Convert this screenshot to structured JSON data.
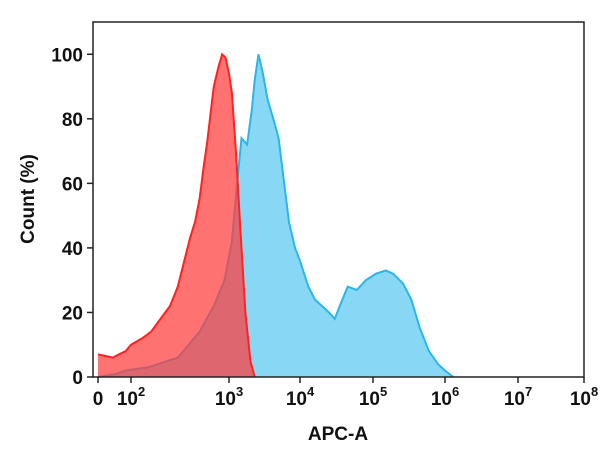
{
  "chart_data": {
    "type": "area",
    "title": "",
    "xlabel": "APC-A",
    "ylabel": "Count (%)",
    "x_scale": "biexponential",
    "ylim": [
      0,
      110
    ],
    "grid": false,
    "x_ticks": [
      {
        "value": 0,
        "base": "0",
        "exp": ""
      },
      {
        "value": 100,
        "base": "10",
        "exp": "2"
      },
      {
        "value": 1000,
        "base": "10",
        "exp": "3"
      },
      {
        "value": 10000,
        "base": "10",
        "exp": "4"
      },
      {
        "value": 100000,
        "base": "10",
        "exp": "5"
      },
      {
        "value": 1000000,
        "base": "10",
        "exp": "6"
      },
      {
        "value": 10000000,
        "base": "10",
        "exp": "7"
      },
      {
        "value": 100000000,
        "base": "10",
        "exp": "8"
      }
    ],
    "y_ticks": [
      0,
      20,
      40,
      60,
      80,
      100
    ],
    "series": [
      {
        "color": "#29b6e8",
        "fill": "#88d8f5",
        "points": [
          [
            0,
            0
          ],
          [
            30,
            1
          ],
          [
            70,
            2
          ],
          [
            150,
            3
          ],
          [
            300,
            6
          ],
          [
            500,
            14
          ],
          [
            700,
            22
          ],
          [
            900,
            30
          ],
          [
            1100,
            42
          ],
          [
            1300,
            60
          ],
          [
            1500,
            74
          ],
          [
            1800,
            72
          ],
          [
            2100,
            83
          ],
          [
            2300,
            92
          ],
          [
            2600,
            100
          ],
          [
            3000,
            94
          ],
          [
            3500,
            86
          ],
          [
            4200,
            80
          ],
          [
            5000,
            74
          ],
          [
            6000,
            60
          ],
          [
            7000,
            48
          ],
          [
            8500,
            40
          ],
          [
            10000,
            36
          ],
          [
            13000,
            28
          ],
          [
            16000,
            24
          ],
          [
            20000,
            22
          ],
          [
            25000,
            20
          ],
          [
            30000,
            18
          ],
          [
            35000,
            22
          ],
          [
            45000,
            28
          ],
          [
            60000,
            27
          ],
          [
            80000,
            30
          ],
          [
            110000,
            32
          ],
          [
            150000,
            33
          ],
          [
            190000,
            32
          ],
          [
            260000,
            29
          ],
          [
            340000,
            24
          ],
          [
            450000,
            15
          ],
          [
            600000,
            8
          ],
          [
            800000,
            4
          ],
          [
            1000000,
            2
          ],
          [
            1300000,
            0
          ]
        ]
      },
      {
        "color": "#ff2222",
        "fill": "rgba(255,60,60,0.72)",
        "points": [
          [
            0,
            7
          ],
          [
            20,
            6
          ],
          [
            40,
            7
          ],
          [
            70,
            8
          ],
          [
            100,
            10
          ],
          [
            130,
            12
          ],
          [
            160,
            14
          ],
          [
            200,
            18
          ],
          [
            250,
            22
          ],
          [
            300,
            28
          ],
          [
            350,
            36
          ],
          [
            400,
            43
          ],
          [
            450,
            48
          ],
          [
            500,
            55
          ],
          [
            550,
            65
          ],
          [
            600,
            73
          ],
          [
            650,
            82
          ],
          [
            700,
            90
          ],
          [
            780,
            96
          ],
          [
            850,
            100
          ],
          [
            920,
            99
          ],
          [
            1000,
            94
          ],
          [
            1100,
            88
          ],
          [
            1250,
            70
          ],
          [
            1450,
            45
          ],
          [
            1700,
            20
          ],
          [
            2000,
            5
          ],
          [
            2300,
            0
          ]
        ]
      }
    ]
  }
}
